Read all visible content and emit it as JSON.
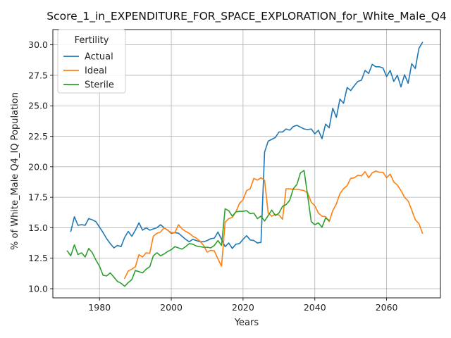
{
  "chart_data": {
    "type": "line",
    "title": "Score_1_in_EXPENDITURE_FOR_SPACE_EXPLORATION_for_White_Male_Q4",
    "xlabel": "Years",
    "ylabel": "% of White_Male Q4_IQ Population",
    "xlim": [
      1967,
      2075
    ],
    "ylim": [
      9.25,
      31.25
    ],
    "xticks": [
      1980,
      2000,
      2020,
      2040,
      2060
    ],
    "yticks": [
      10.0,
      12.5,
      15.0,
      17.5,
      20.0,
      22.5,
      25.0,
      27.5,
      30.0
    ],
    "ytick_labels": [
      "10.0",
      "12.5",
      "15.0",
      "17.5",
      "20.0",
      "22.5",
      "25.0",
      "27.5",
      "30.0"
    ],
    "grid": true,
    "legend": {
      "title": "Fertility",
      "location": "upper-left"
    },
    "series": [
      {
        "name": "Actual",
        "color": "#1f77b4",
        "x": [
          1972,
          1973,
          1974,
          1975,
          1976,
          1977,
          1978,
          1979,
          1980,
          1981,
          1982,
          1983,
          1984,
          1985,
          1986,
          1987,
          1988,
          1989,
          1990,
          1991,
          1992,
          1993,
          1994,
          1995,
          1996,
          1997,
          1998,
          1999,
          2000,
          2001,
          2002,
          2003,
          2004,
          2005,
          2006,
          2007,
          2008,
          2009,
          2010,
          2011,
          2012,
          2013,
          2014,
          2015,
          2016,
          2017,
          2018,
          2019,
          2020,
          2021,
          2022,
          2023,
          2024,
          2025,
          2026,
          2027,
          2028,
          2029,
          2030,
          2031,
          2032,
          2033,
          2034,
          2035,
          2036,
          2037,
          2038,
          2039,
          2040,
          2041,
          2042,
          2043,
          2044,
          2045,
          2046,
          2047,
          2048,
          2049,
          2050,
          2051,
          2052,
          2053,
          2054,
          2055,
          2056,
          2057,
          2058,
          2059,
          2060,
          2061,
          2062,
          2063,
          2064,
          2065,
          2066,
          2067,
          2068,
          2069,
          2070
        ],
        "values": [
          14.7,
          15.9,
          15.2,
          15.25,
          15.2,
          15.75,
          15.65,
          15.5,
          15.05,
          14.6,
          14.1,
          13.7,
          13.35,
          13.55,
          13.45,
          14.2,
          14.7,
          14.3,
          14.8,
          15.4,
          14.8,
          15.0,
          14.8,
          14.9,
          15.0,
          15.25,
          15.0,
          14.8,
          14.55,
          14.6,
          14.55,
          14.3,
          14.05,
          13.85,
          14.05,
          13.95,
          13.85,
          13.85,
          13.95,
          14.1,
          14.15,
          14.65,
          14.05,
          13.45,
          13.75,
          13.3,
          13.65,
          13.7,
          14.05,
          14.35,
          14.0,
          13.95,
          13.75,
          13.8,
          21.2,
          22.1,
          22.25,
          22.4,
          22.85,
          22.85,
          23.1,
          23.0,
          23.3,
          23.4,
          23.25,
          23.1,
          23.05,
          23.1,
          22.7,
          23.0,
          22.3,
          23.5,
          23.2,
          24.8,
          24.05,
          25.55,
          25.2,
          26.5,
          26.25,
          26.65,
          27.0,
          27.1,
          27.9,
          27.65,
          28.4,
          28.2,
          28.2,
          28.1,
          27.4,
          27.9,
          27.0,
          27.5,
          26.55,
          27.55,
          26.85,
          28.45,
          28.05,
          29.7,
          30.2
        ]
      },
      {
        "name": "Ideal",
        "color": "#ff7f0e",
        "x": [
          1987,
          1988,
          1989,
          1990,
          1991,
          1992,
          1993,
          1994,
          1995,
          1996,
          1997,
          1998,
          1999,
          2000,
          2001,
          2002,
          2003,
          2004,
          2005,
          2006,
          2007,
          2008,
          2009,
          2010,
          2011,
          2012,
          2013,
          2014,
          2015,
          2016,
          2017,
          2018,
          2019,
          2020,
          2021,
          2022,
          2023,
          2024,
          2025,
          2026,
          2027,
          2028,
          2029,
          2030,
          2031,
          2032,
          2033,
          2034,
          2035,
          2036,
          2037,
          2038,
          2039,
          2040,
          2041,
          2042,
          2043,
          2044,
          2045,
          2046,
          2047,
          2048,
          2049,
          2050,
          2051,
          2052,
          2053,
          2054,
          2055,
          2056,
          2057,
          2058,
          2059,
          2060,
          2061,
          2062,
          2063,
          2064,
          2065,
          2066,
          2067,
          2068,
          2069,
          2070
        ],
        "values": [
          10.85,
          11.45,
          11.6,
          11.8,
          12.8,
          12.6,
          12.95,
          12.9,
          14.3,
          14.55,
          14.65,
          15.0,
          14.8,
          14.6,
          14.6,
          15.25,
          14.9,
          14.7,
          14.55,
          14.3,
          14.15,
          13.9,
          13.55,
          13.0,
          13.15,
          13.1,
          12.45,
          11.85,
          15.45,
          15.75,
          15.85,
          16.3,
          17.0,
          17.3,
          18.05,
          18.2,
          19.05,
          18.9,
          19.1,
          18.9,
          16.2,
          15.95,
          16.1,
          16.05,
          15.7,
          18.2,
          18.2,
          18.15,
          18.15,
          18.1,
          18.05,
          17.85,
          17.1,
          16.8,
          16.2,
          15.95,
          15.9,
          15.5,
          16.4,
          16.95,
          17.8,
          18.2,
          18.45,
          19.05,
          19.1,
          19.3,
          19.25,
          19.6,
          19.1,
          19.5,
          19.65,
          19.55,
          19.55,
          19.1,
          19.4,
          18.75,
          18.5,
          18.05,
          17.5,
          17.2,
          16.45,
          15.65,
          15.35,
          14.55
        ]
      },
      {
        "name": "Sterile",
        "color": "#2ca02c",
        "x": [
          1971,
          1972,
          1973,
          1974,
          1975,
          1976,
          1977,
          1978,
          1979,
          1980,
          1981,
          1982,
          1983,
          1984,
          1985,
          1986,
          1987,
          1988,
          1989,
          1990,
          1991,
          1992,
          1993,
          1994,
          1995,
          1996,
          1997,
          1998,
          1999,
          2000,
          2001,
          2002,
          2003,
          2004,
          2005,
          2006,
          2007,
          2008,
          2009,
          2010,
          2011,
          2012,
          2013,
          2014,
          2015,
          2016,
          2017,
          2018,
          2019,
          2020,
          2021,
          2022,
          2023,
          2024,
          2025,
          2026,
          2027,
          2028,
          2029,
          2030,
          2031,
          2032,
          2033,
          2034,
          2035,
          2036,
          2037,
          2038,
          2039,
          2040,
          2041,
          2042,
          2043,
          2044
        ],
        "values": [
          13.1,
          12.7,
          13.6,
          12.8,
          12.95,
          12.6,
          13.3,
          12.95,
          12.35,
          11.85,
          11.1,
          11.05,
          11.3,
          10.95,
          10.6,
          10.45,
          10.2,
          10.5,
          10.75,
          11.5,
          11.4,
          11.3,
          11.6,
          11.8,
          12.7,
          12.95,
          12.7,
          12.85,
          13.05,
          13.2,
          13.45,
          13.35,
          13.25,
          13.45,
          13.7,
          13.65,
          13.5,
          13.45,
          13.4,
          13.4,
          13.35,
          13.55,
          13.95,
          13.55,
          16.55,
          16.4,
          15.95,
          16.3,
          16.35,
          16.35,
          16.4,
          16.15,
          16.2,
          15.75,
          15.95,
          15.55,
          16.0,
          16.45,
          16.0,
          16.2,
          16.75,
          16.9,
          17.25,
          18.2,
          18.55,
          19.5,
          19.7,
          17.65,
          15.5,
          15.25,
          15.4,
          15.05,
          15.8,
          15.6
        ]
      }
    ]
  }
}
